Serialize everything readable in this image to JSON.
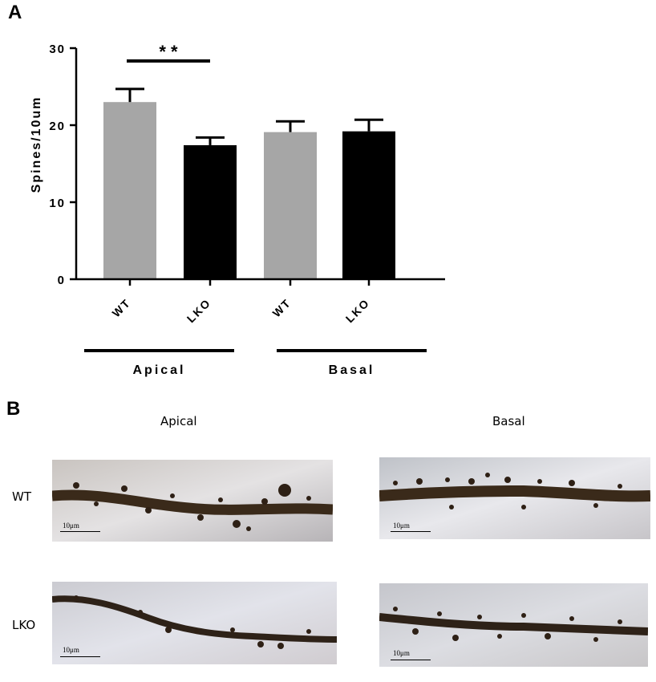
{
  "panel_a": {
    "letter": "A",
    "chart_data": {
      "type": "bar",
      "categories": [
        "WT",
        "LKO",
        "WT",
        "LKO"
      ],
      "groups": [
        {
          "label": "Apical",
          "categories": [
            "WT",
            "LKO"
          ]
        },
        {
          "label": "Basal",
          "categories": [
            "WT",
            "LKO"
          ]
        }
      ],
      "values": [
        23.0,
        17.4,
        19.1,
        19.2
      ],
      "errors": [
        1.7,
        1.0,
        1.4,
        1.5
      ],
      "bar_colors": [
        "#a6a6a6",
        "#000000",
        "#a6a6a6",
        "#000000"
      ],
      "ylabel": "Spines/10um",
      "xlabel": "",
      "ylim": [
        0,
        30
      ],
      "yticks": [
        0,
        10,
        20,
        30
      ],
      "significance": {
        "between": [
          0,
          1
        ],
        "label": "* *"
      },
      "grid": false
    }
  },
  "panel_b": {
    "letter": "B",
    "columns": [
      "Apical",
      "Basal"
    ],
    "rows": [
      "WT",
      "LKO"
    ],
    "scale_bar_label": "10μm"
  }
}
